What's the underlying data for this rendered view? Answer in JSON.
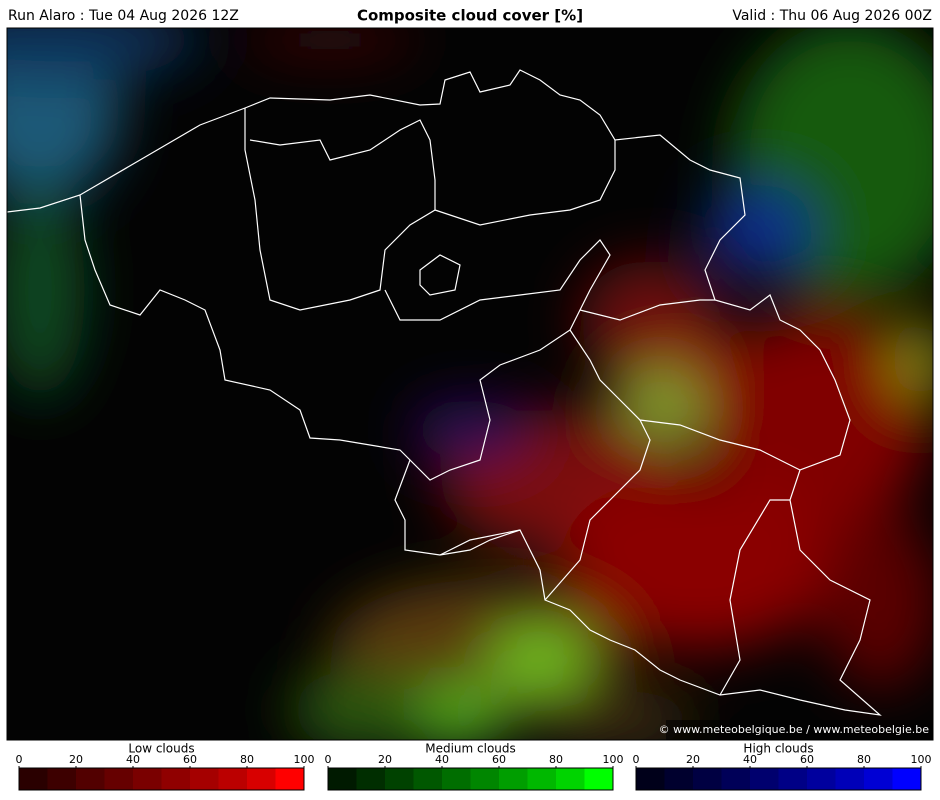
{
  "header": {
    "run": "Run Alaro : Tue 04 Aug 2026 12Z",
    "title": "Composite cloud cover [%]",
    "valid": "Valid : Thu 06 Aug 2026 00Z"
  },
  "map": {
    "credit": "© www.meteobelgique.be / www.meteobelgie.be"
  },
  "legends": [
    {
      "label": "Low clouds",
      "ticks": [
        0,
        20,
        40,
        60,
        80,
        100
      ],
      "colors": [
        "#2a0000",
        "#3d0000",
        "#520000",
        "#660000",
        "#7a0000",
        "#900000",
        "#a50000",
        "#bb0000",
        "#d80000",
        "#ff0000"
      ]
    },
    {
      "label": "Medium clouds",
      "ticks": [
        0,
        20,
        40,
        60,
        80,
        100
      ],
      "colors": [
        "#001a00",
        "#002e00",
        "#004200",
        "#005800",
        "#006e00",
        "#008600",
        "#009e00",
        "#00b800",
        "#00d400",
        "#00ff00"
      ]
    },
    {
      "label": "High clouds",
      "ticks": [
        0,
        20,
        40,
        60,
        80,
        100
      ],
      "colors": [
        "#00001a",
        "#00002e",
        "#000042",
        "#000058",
        "#00006e",
        "#000086",
        "#00009e",
        "#0000b8",
        "#0000d4",
        "#0000ff"
      ]
    }
  ]
}
